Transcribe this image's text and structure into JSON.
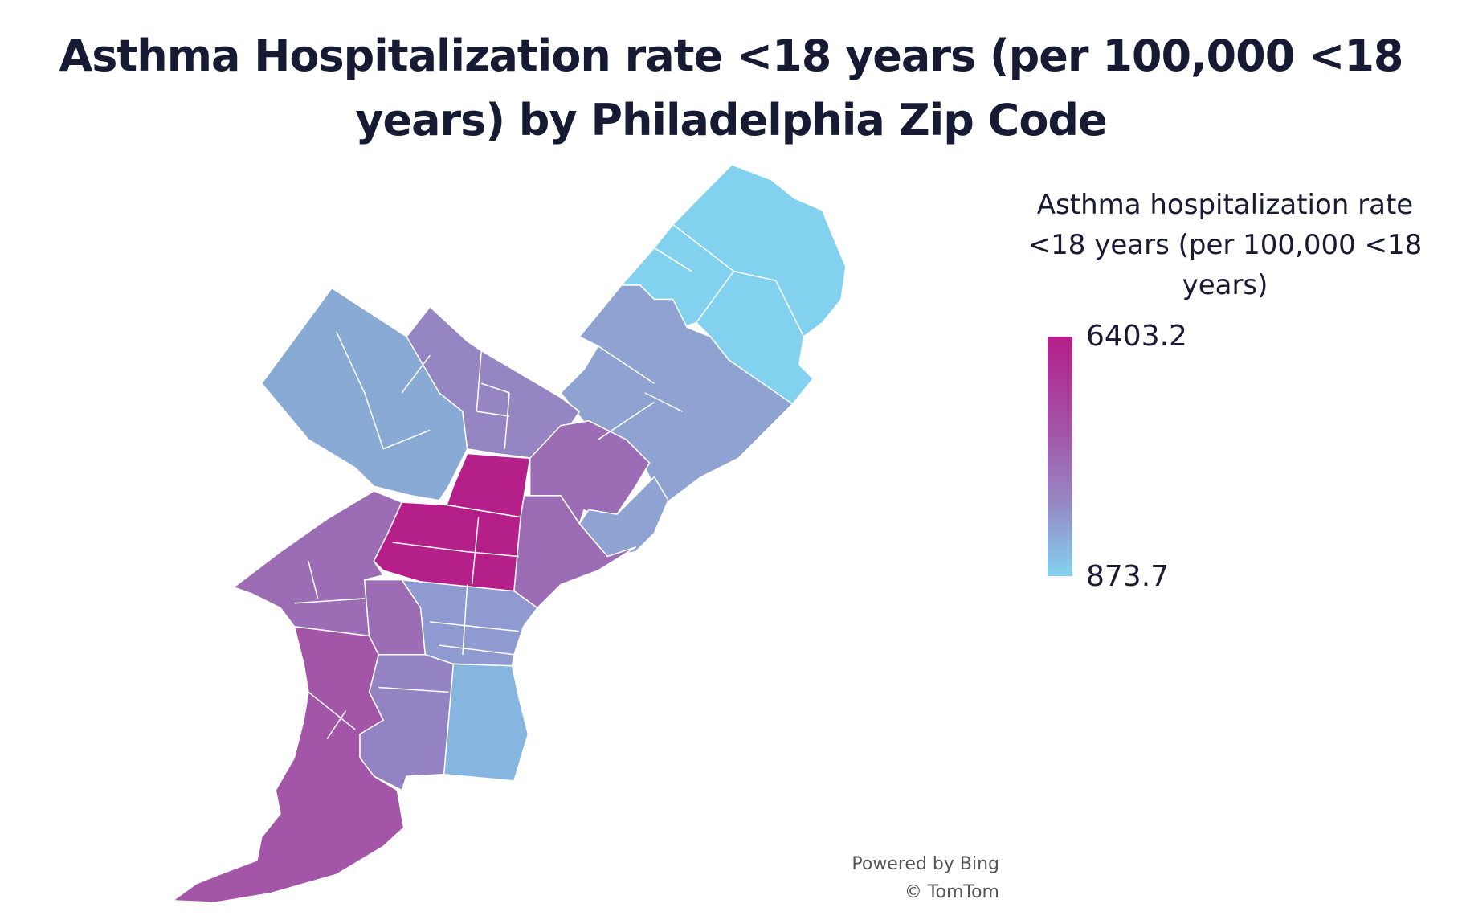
{
  "title": "Asthma Hospitalization rate <18 years (per 100,000 <18 years) by Philadelphia Zip Code",
  "legend": {
    "title": "Asthma hospitalization rate <18 years (per 100,000 <18 years)",
    "max_label": "6403.2",
    "min_label": "873.7",
    "max_color": "#b51f8a",
    "min_color": "#82d2ef"
  },
  "attribution": {
    "line1": "Powered by Bing",
    "line2": "© TomTom"
  },
  "region_colors": {
    "far_northeast": "#82d2ef",
    "northeast": "#8fa3d2",
    "northwest": "#8aaad6",
    "north": "#9585c2",
    "north_central": "#b51f8a",
    "kensington": "#9c6db5",
    "river_wards": "#8fa3d2",
    "west": "#9c6db5",
    "center_city": "#8f9bd0",
    "south_east": "#86b6e0",
    "south": "#9483c2",
    "southwest": "#a355a8"
  }
}
